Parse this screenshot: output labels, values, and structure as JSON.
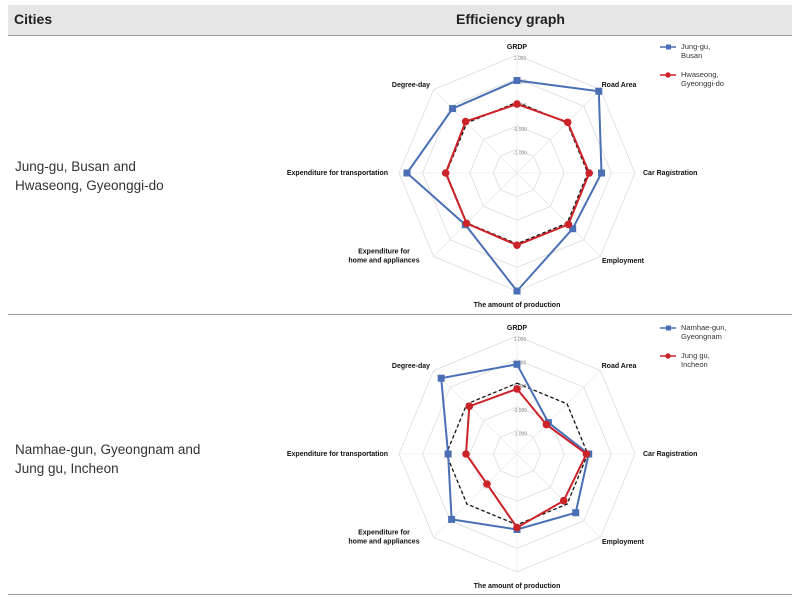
{
  "header": {
    "cities": "Cities",
    "graph": "Efficiency graph"
  },
  "rows": [
    {
      "city_line1": "Jung-gu, Busan and",
      "city_line2": "Hwaseong, Gyeonggi-do"
    },
    {
      "city_line1": "Namhae-gun, Gyeongnam and",
      "city_line2": "Jung gu, Incheon"
    }
  ],
  "chart_data": [
    {
      "type": "radar",
      "axes": [
        [
          "GRDP"
        ],
        [
          "Road Area"
        ],
        [
          "Car Ragistration"
        ],
        [
          "Employment"
        ],
        [
          "The amount of production"
        ],
        [
          "Expenditure for",
          "home and appliances"
        ],
        [
          "Expenditure for transportation"
        ],
        [
          "Degree-day"
        ]
      ],
      "ticks": [
        1.0,
        0.5,
        0.0,
        -0.5,
        -1.0
      ],
      "tick_labels": [
        "1.000",
        "0.500",
        "0.000",
        "-0.500",
        "-1.000"
      ],
      "range": [
        -1.5,
        1.0
      ],
      "reference_value": 0.0,
      "series": [
        {
          "name_lines": [
            "Jung-gu,",
            "Busan"
          ],
          "color": "#4a6fb5",
          "marker": "square",
          "values": [
            0.46,
            0.95,
            0.29,
            0.17,
            1.0,
            0.05,
            0.83,
            0.43
          ]
        },
        {
          "name_lines": [
            "Hwaseong,",
            "Gyeonggi-do"
          ],
          "color": "#cc2229",
          "marker": "circle",
          "values": [
            -0.04,
            0.02,
            0.03,
            0.04,
            0.03,
            0.01,
            0.01,
            0.04
          ]
        }
      ]
    },
    {
      "type": "radar",
      "axes": [
        [
          "GRDP"
        ],
        [
          "Road Area"
        ],
        [
          "Car Ragistration"
        ],
        [
          "Employment"
        ],
        [
          "The amount of production"
        ],
        [
          "Expenditure for",
          "home and appliances"
        ],
        [
          "Expenditure for transportation"
        ],
        [
          "Degree-day"
        ]
      ],
      "ticks": [
        1.0,
        0.5,
        0.0,
        -0.5,
        -1.0
      ],
      "tick_labels": [
        "1.000",
        "0.500",
        "0.000",
        "-0.500",
        "-1.000"
      ],
      "range": [
        -1.5,
        1.0
      ],
      "reference_value": 0.0,
      "series": [
        {
          "name_lines": [
            "Namhae-gun,",
            "Gyeongnam"
          ],
          "color": "#4a6fb5",
          "marker": "square",
          "values": [
            0.4,
            -0.56,
            0.02,
            0.26,
            0.1,
            0.46,
            -0.04,
            0.77
          ]
        },
        {
          "name_lines": [
            "Jung gu,",
            "Incheon"
          ],
          "color": "#cc2229",
          "marker": "circle",
          "values": [
            -0.12,
            -0.62,
            -0.03,
            -0.1,
            0.06,
            -0.6,
            -0.42,
            -0.07
          ]
        }
      ]
    }
  ]
}
